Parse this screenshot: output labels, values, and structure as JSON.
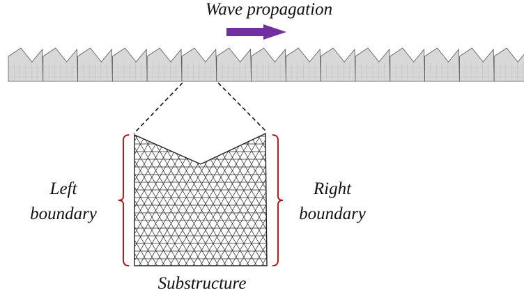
{
  "title": "Wave propagation",
  "left_boundary": {
    "line1": "Left",
    "line2": "boundary"
  },
  "right_boundary": {
    "line1": "Right",
    "line2": "boundary"
  },
  "substructure_label": "Substructure",
  "colors": {
    "arrow": "#7030a0",
    "bracket": "#c00000",
    "mesh": "#222222",
    "strip_fill": "#d8d8d8",
    "strip_edge": "#555555"
  },
  "strip": {
    "cell_count": 15
  }
}
